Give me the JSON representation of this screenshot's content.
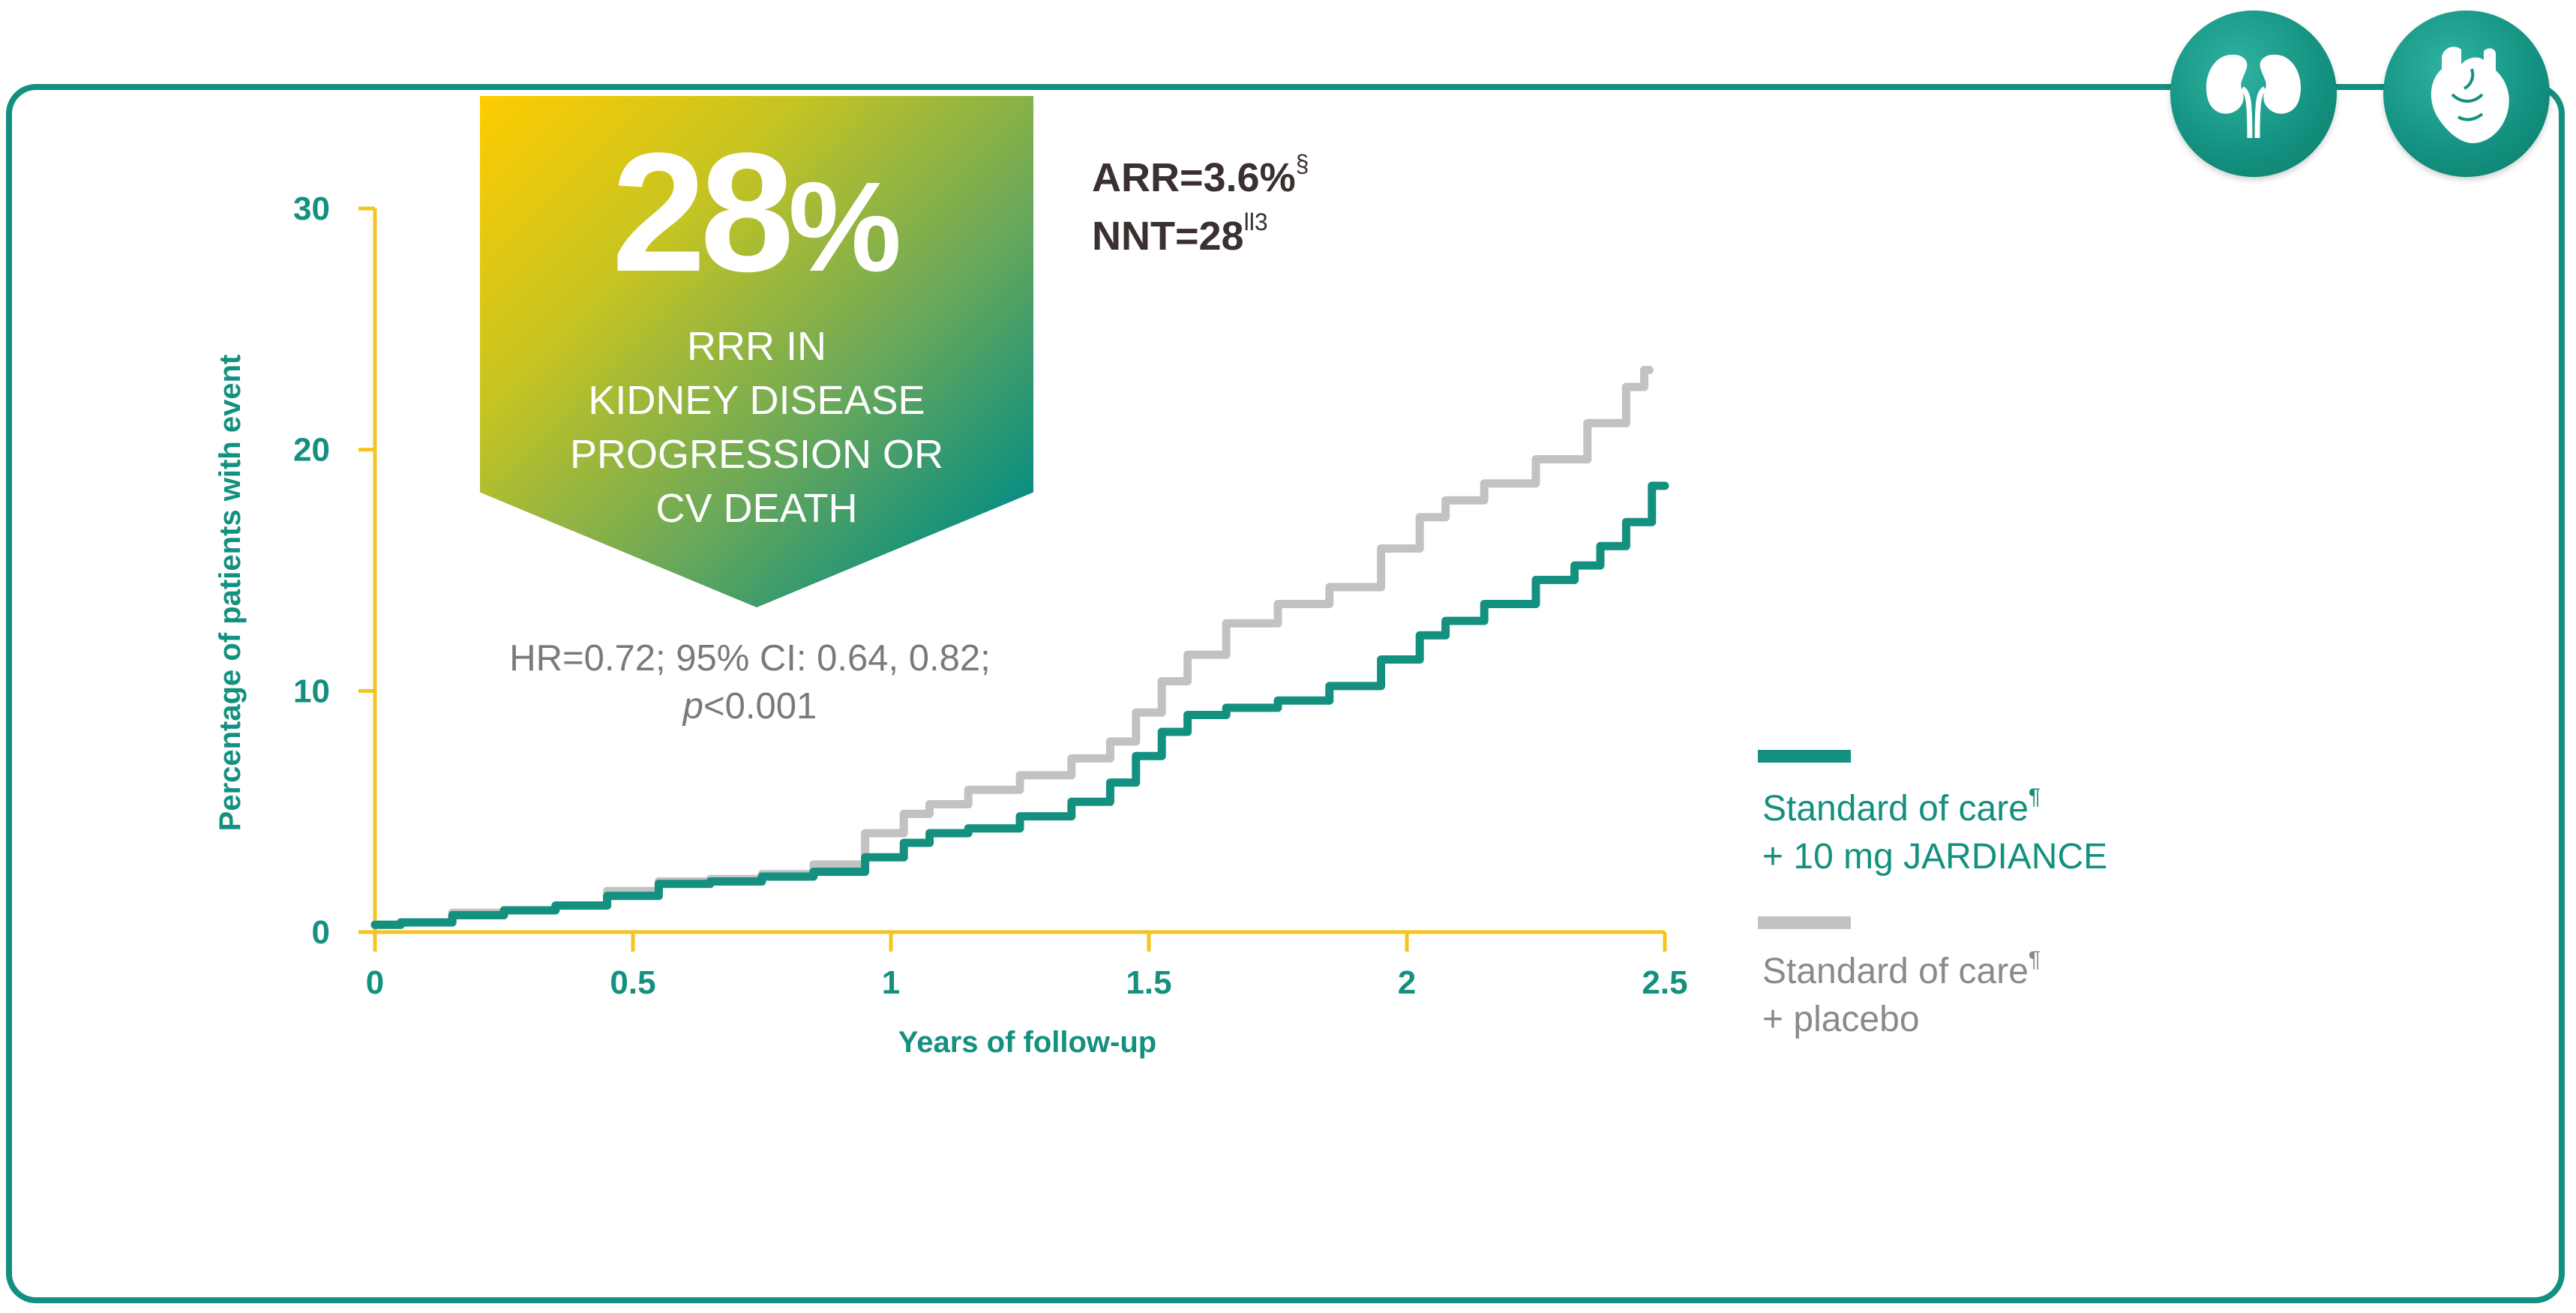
{
  "colors": {
    "teal": "#13907f",
    "grey": "#c2c2c2",
    "axis_yellow": "#f4c420",
    "text_dark": "#3b2f2f",
    "text_grey": "#7a7a7a"
  },
  "icons": {
    "left": "kidney-icon",
    "right": "heart-icon"
  },
  "banner": {
    "big_number": "28",
    "big_unit": "%",
    "caption_lines": [
      "RRR IN",
      "KIDNEY DISEASE",
      "PROGRESSION OR",
      "CV DEATH"
    ]
  },
  "stats": {
    "arr_label": "ARR=3.6%",
    "arr_sup": "§",
    "nnt_label": "NNT=28",
    "nnt_sup": "ll3"
  },
  "hr": {
    "line1": "HR=0.72; 95% CI: 0.64, 0.82;",
    "p_label": "p",
    "p_value": "<0.001"
  },
  "legend": {
    "jardiance_line1": "Standard of care",
    "jardiance_sup": "¶",
    "jardiance_line2": "+ 10 mg JARDIANCE",
    "placebo_line1": "Standard of care",
    "placebo_sup": "¶",
    "placebo_line2": "+ placebo"
  },
  "chart_data": {
    "type": "line",
    "title": "",
    "xlabel": "Years of follow-up",
    "ylabel": "Percentage of patients with event",
    "xlim": [
      0,
      2.5
    ],
    "ylim": [
      0,
      30
    ],
    "x_ticks": [
      0,
      0.5,
      1,
      1.5,
      2,
      2.5
    ],
    "x_tick_labels": [
      "0",
      "0.5",
      "1",
      "1.5",
      "2",
      "2.5"
    ],
    "y_ticks": [
      0,
      10,
      20,
      30
    ],
    "y_tick_labels": [
      "0",
      "10",
      "20",
      "30"
    ],
    "grid": false,
    "series": [
      {
        "name": "Standard of care + 10 mg JARDIANCE",
        "color": "#13907f",
        "points": [
          [
            0,
            0.3
          ],
          [
            0.1,
            0.4
          ],
          [
            0.2,
            0.7
          ],
          [
            0.3,
            0.9
          ],
          [
            0.4,
            1.1
          ],
          [
            0.5,
            1.5
          ],
          [
            0.6,
            2.0
          ],
          [
            0.7,
            2.1
          ],
          [
            0.8,
            2.3
          ],
          [
            0.9,
            2.5
          ],
          [
            1.0,
            3.1
          ],
          [
            1.05,
            3.7
          ],
          [
            1.1,
            4.1
          ],
          [
            1.2,
            4.3
          ],
          [
            1.3,
            4.8
          ],
          [
            1.4,
            5.4
          ],
          [
            1.45,
            6.2
          ],
          [
            1.5,
            7.3
          ],
          [
            1.55,
            8.3
          ],
          [
            1.6,
            9.0
          ],
          [
            1.7,
            9.3
          ],
          [
            1.8,
            9.6
          ],
          [
            1.9,
            10.2
          ],
          [
            2.0,
            11.3
          ],
          [
            2.05,
            12.3
          ],
          [
            2.1,
            12.9
          ],
          [
            2.2,
            13.6
          ],
          [
            2.3,
            14.6
          ],
          [
            2.35,
            15.2
          ],
          [
            2.4,
            16.0
          ],
          [
            2.45,
            17.0
          ],
          [
            2.5,
            18.5
          ]
        ]
      },
      {
        "name": "Standard of care + placebo",
        "color": "#c2c2c2",
        "points": [
          [
            0,
            0.3
          ],
          [
            0.1,
            0.4
          ],
          [
            0.2,
            0.8
          ],
          [
            0.3,
            0.9
          ],
          [
            0.4,
            1.1
          ],
          [
            0.5,
            1.7
          ],
          [
            0.6,
            2.1
          ],
          [
            0.7,
            2.2
          ],
          [
            0.8,
            2.4
          ],
          [
            0.9,
            2.8
          ],
          [
            1.0,
            4.1
          ],
          [
            1.05,
            4.9
          ],
          [
            1.1,
            5.3
          ],
          [
            1.2,
            5.9
          ],
          [
            1.3,
            6.5
          ],
          [
            1.4,
            7.2
          ],
          [
            1.45,
            7.9
          ],
          [
            1.5,
            9.1
          ],
          [
            1.55,
            10.4
          ],
          [
            1.6,
            11.5
          ],
          [
            1.7,
            12.8
          ],
          [
            1.8,
            13.6
          ],
          [
            1.9,
            14.3
          ],
          [
            2.0,
            15.9
          ],
          [
            2.05,
            17.2
          ],
          [
            2.1,
            17.9
          ],
          [
            2.2,
            18.6
          ],
          [
            2.3,
            19.6
          ],
          [
            2.4,
            21.1
          ],
          [
            2.45,
            22.6
          ],
          [
            2.47,
            23.3
          ]
        ]
      }
    ]
  }
}
